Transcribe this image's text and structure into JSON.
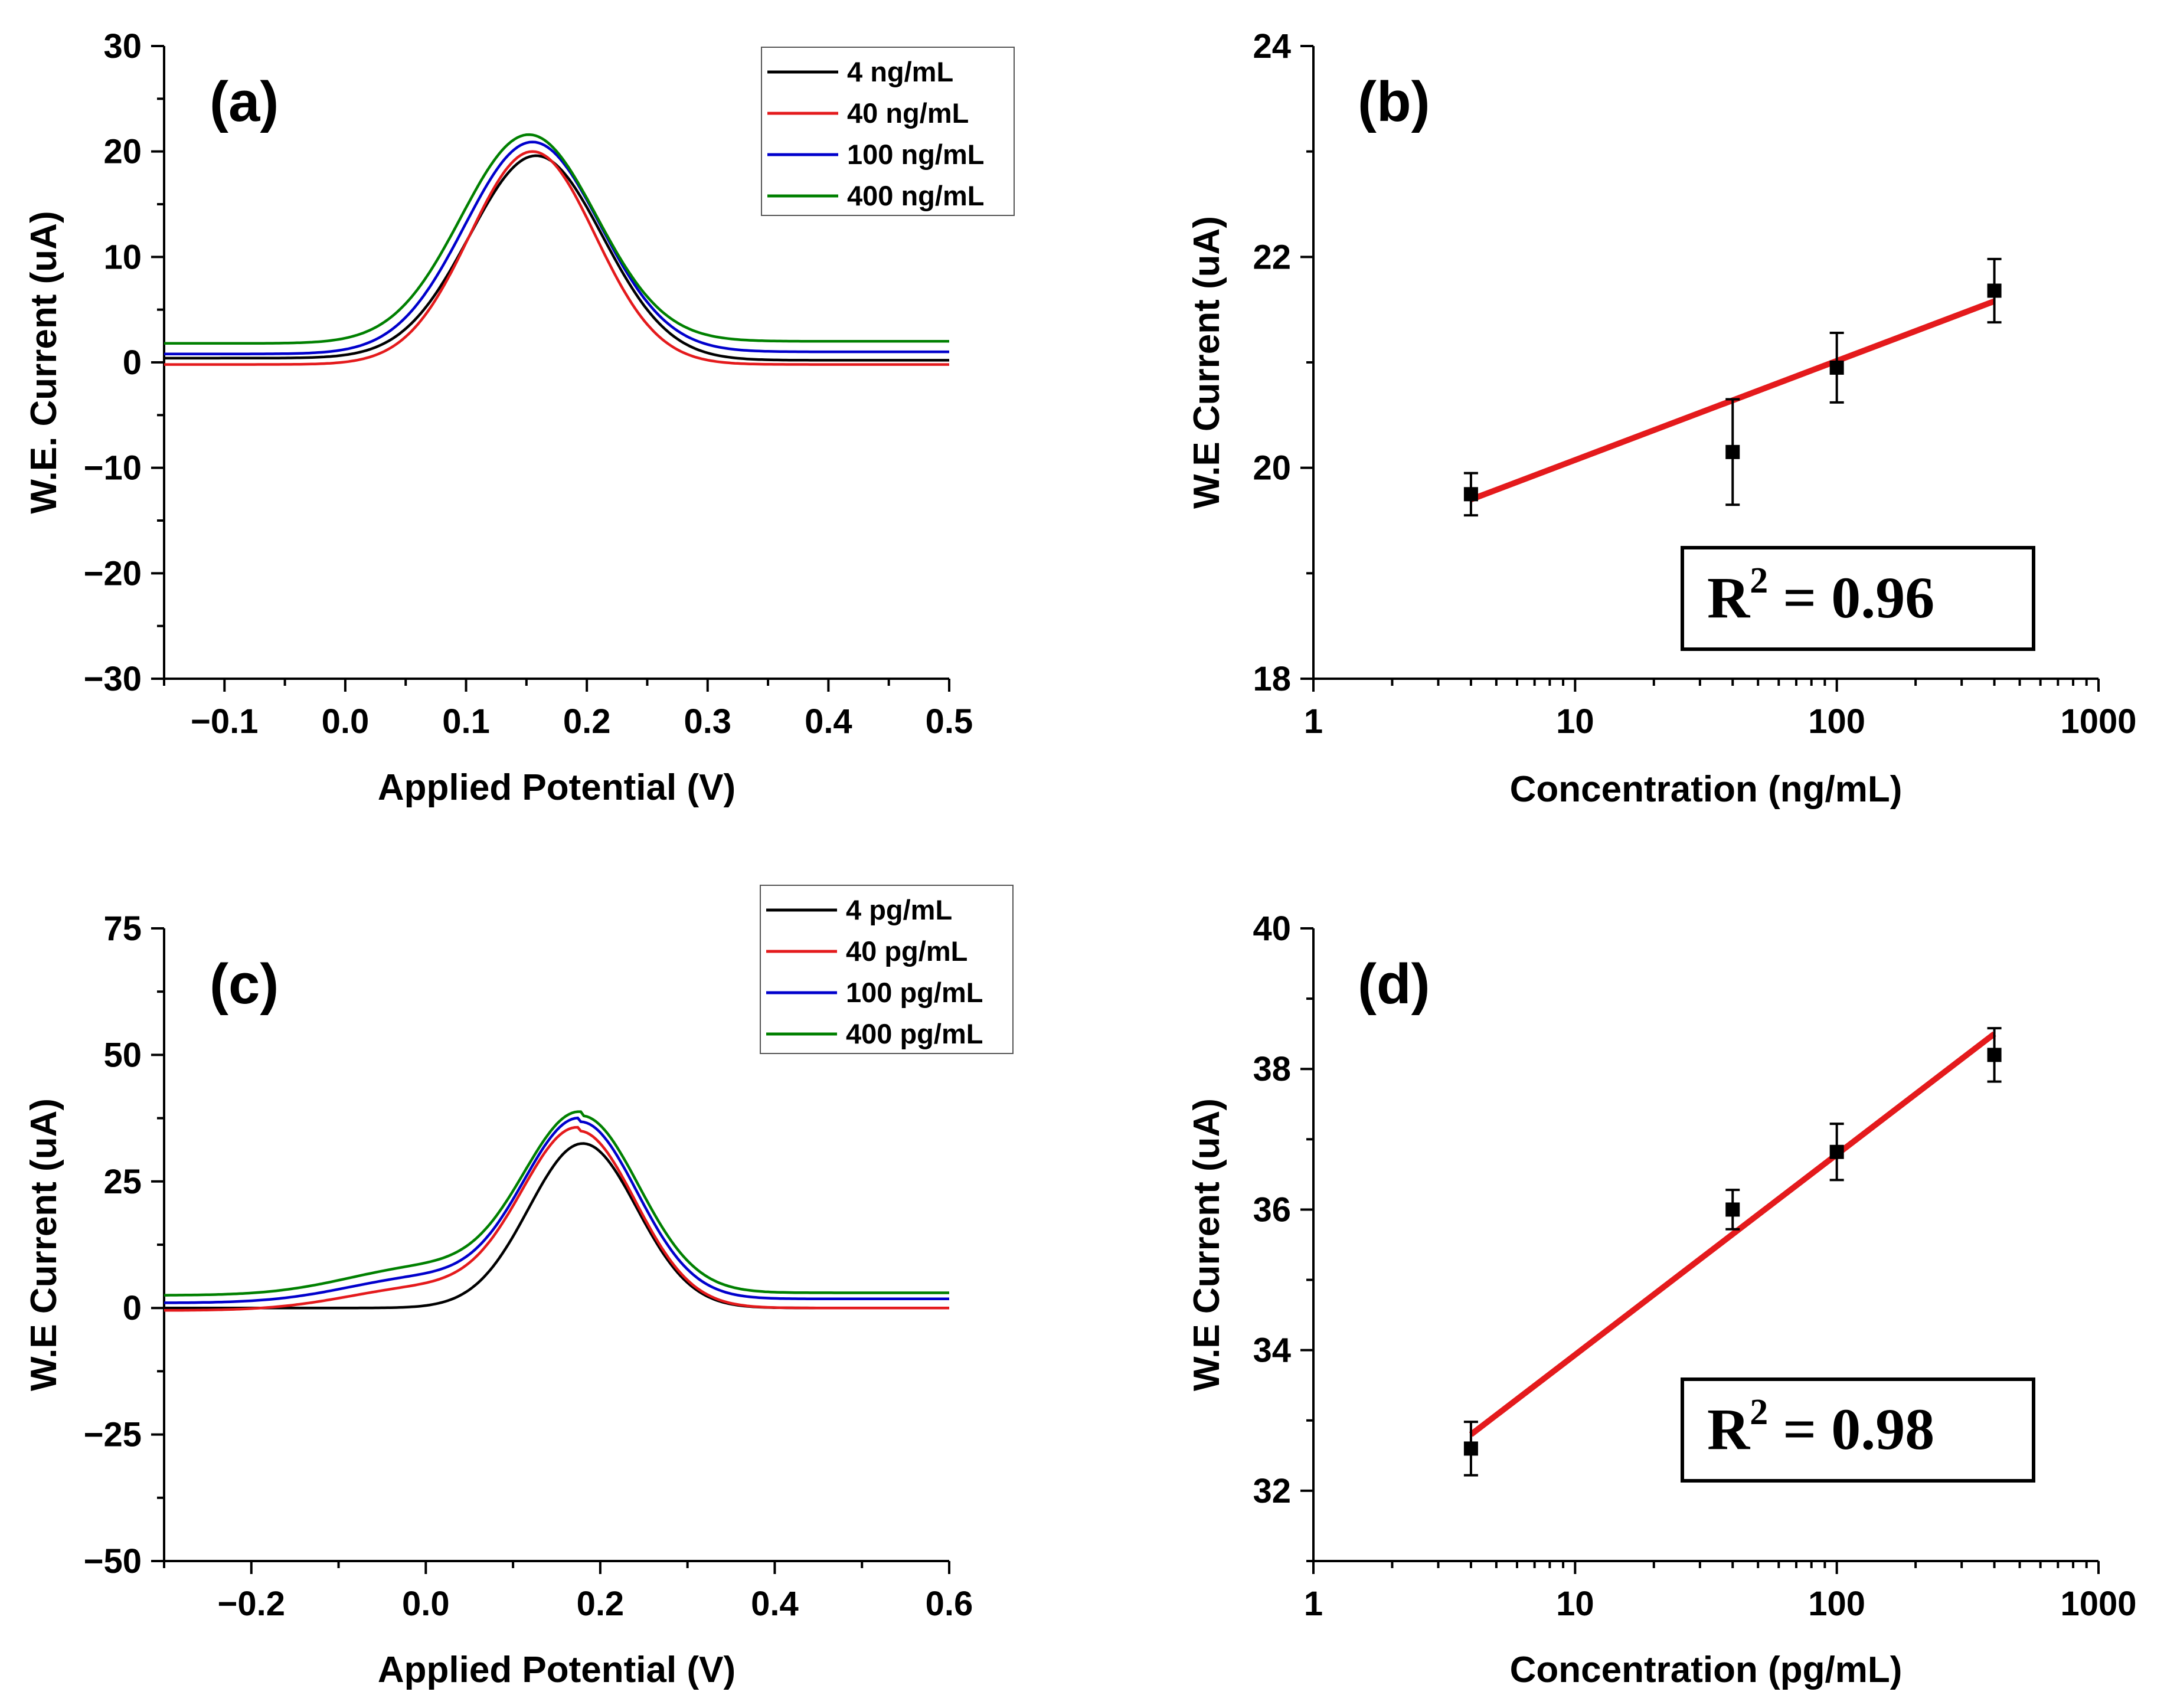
{
  "chart_data": [
    {
      "id": "a",
      "type": "line",
      "panel_label": "(a)",
      "xlabel": "Applied Potential (V)",
      "ylabel": "W.E. Current (uA)",
      "xlim": [
        -0.15,
        0.5
      ],
      "ylim": [
        -30,
        30
      ],
      "xticks": [
        -0.1,
        0.0,
        0.1,
        0.2,
        0.3,
        0.4,
        0.5
      ],
      "xtick_labels": [
        "−0.1",
        "0.0",
        "0.1",
        "0.2",
        "0.3",
        "0.4",
        "0.5"
      ],
      "yticks": [
        -30,
        -20,
        -10,
        0,
        10,
        20,
        30
      ],
      "ytick_labels": [
        "−30",
        "−20",
        "−10",
        "0",
        "10",
        "20",
        "30"
      ],
      "legend_position": "top-right",
      "series": [
        {
          "name": "4 ng/mL",
          "color": "#000000",
          "baseline": 0.4,
          "baseline_right": 0.2,
          "peak": 19.6,
          "center": 0.158,
          "width": 0.055,
          "shoulder": 0.0
        },
        {
          "name": "40 ng/mL",
          "color": "#e41a1c",
          "baseline": -0.2,
          "baseline_right": -0.2,
          "peak": 20.0,
          "center": 0.155,
          "width": 0.052,
          "shoulder": 0.0
        },
        {
          "name": "100 ng/mL",
          "color": "#0000cc",
          "baseline": 0.8,
          "baseline_right": 1.0,
          "peak": 20.9,
          "center": 0.155,
          "width": 0.056,
          "shoulder": 0.0
        },
        {
          "name": "400 ng/mL",
          "color": "#008000",
          "baseline": 1.8,
          "baseline_right": 2.0,
          "peak": 21.6,
          "center": 0.152,
          "width": 0.056,
          "shoulder": 0.0
        }
      ]
    },
    {
      "id": "b",
      "type": "scatter",
      "panel_label": "(b)",
      "xlabel": "Concentration (ng/mL)",
      "ylabel": "W.E Current (uA)",
      "xscale": "log",
      "xlim": [
        1,
        1000
      ],
      "ylim": [
        18,
        24
      ],
      "xticks": [
        1,
        10,
        100,
        1000
      ],
      "xtick_labels": [
        "1",
        "10",
        "100",
        "1000"
      ],
      "yticks": [
        18,
        20,
        22,
        24
      ],
      "ytick_labels": [
        "18",
        "20",
        "22",
        "24"
      ],
      "points": [
        {
          "x": 4,
          "y": 19.75,
          "err": 0.2
        },
        {
          "x": 40,
          "y": 20.15,
          "err": 0.5
        },
        {
          "x": 100,
          "y": 20.95,
          "err": 0.33
        },
        {
          "x": 400,
          "y": 21.68,
          "err": 0.3
        }
      ],
      "fit": {
        "x": [
          4,
          400
        ],
        "y": [
          19.7,
          21.58
        ],
        "color": "#e41a1c"
      },
      "r2_prefix": "R",
      "r2_sup": "2",
      "r2_value": " = 0.96"
    },
    {
      "id": "c",
      "type": "line",
      "panel_label": "(c)",
      "xlabel": "Applied Potential (V)",
      "ylabel": "W.E Current (uA)",
      "xlim": [
        -0.3,
        0.6
      ],
      "ylim": [
        -50,
        75
      ],
      "xticks": [
        -0.2,
        0.0,
        0.2,
        0.4,
        0.6
      ],
      "xtick_labels": [
        "−0.2",
        "0.0",
        "0.2",
        "0.4",
        "0.6"
      ],
      "yticks": [
        -50,
        -25,
        0,
        25,
        50,
        75
      ],
      "ytick_labels": [
        "−50",
        "−25",
        "0",
        "25",
        "50",
        "75"
      ],
      "legend_position": "top-right",
      "series": [
        {
          "name": "4 pg/mL",
          "color": "#000000",
          "baseline": 0.0,
          "baseline_right": 0.0,
          "peak": 32.5,
          "center": 0.18,
          "width": 0.062,
          "shoulder": 0.0
        },
        {
          "name": "40 pg/mL",
          "color": "#e41a1c",
          "baseline": -0.5,
          "baseline_right": 0.0,
          "peak": 35.0,
          "center": 0.175,
          "width": 0.065,
          "shoulder": 4.5
        },
        {
          "name": "100 pg/mL",
          "color": "#0000cc",
          "baseline": 1.0,
          "baseline_right": 1.8,
          "peak": 36.8,
          "center": 0.177,
          "width": 0.065,
          "shoulder": 5.0
        },
        {
          "name": "400 pg/mL",
          "color": "#008000",
          "baseline": 2.5,
          "baseline_right": 3.0,
          "peak": 38.0,
          "center": 0.178,
          "width": 0.066,
          "shoulder": 5.5
        }
      ]
    },
    {
      "id": "d",
      "type": "scatter",
      "panel_label": "(d)",
      "xlabel": "Concentration (pg/mL)",
      "ylabel": "W.E Current (uA)",
      "xscale": "log",
      "xlim": [
        1,
        1000
      ],
      "ylim": [
        31,
        40
      ],
      "xticks": [
        1,
        10,
        100,
        1000
      ],
      "xtick_labels": [
        "1",
        "10",
        "100",
        "1000"
      ],
      "yticks": [
        32,
        34,
        36,
        38,
        40
      ],
      "ytick_labels": [
        "32",
        "34",
        "36",
        "38",
        "40"
      ],
      "points": [
        {
          "x": 4,
          "y": 32.6,
          "err": 0.38
        },
        {
          "x": 40,
          "y": 36.0,
          "err": 0.28
        },
        {
          "x": 100,
          "y": 36.82,
          "err": 0.4
        },
        {
          "x": 400,
          "y": 38.2,
          "err": 0.38
        }
      ],
      "fit": {
        "x": [
          4,
          400
        ],
        "y": [
          32.8,
          38.5
        ],
        "color": "#e41a1c"
      },
      "r2_prefix": "R",
      "r2_sup": "2",
      "r2_value": " = 0.98"
    }
  ]
}
